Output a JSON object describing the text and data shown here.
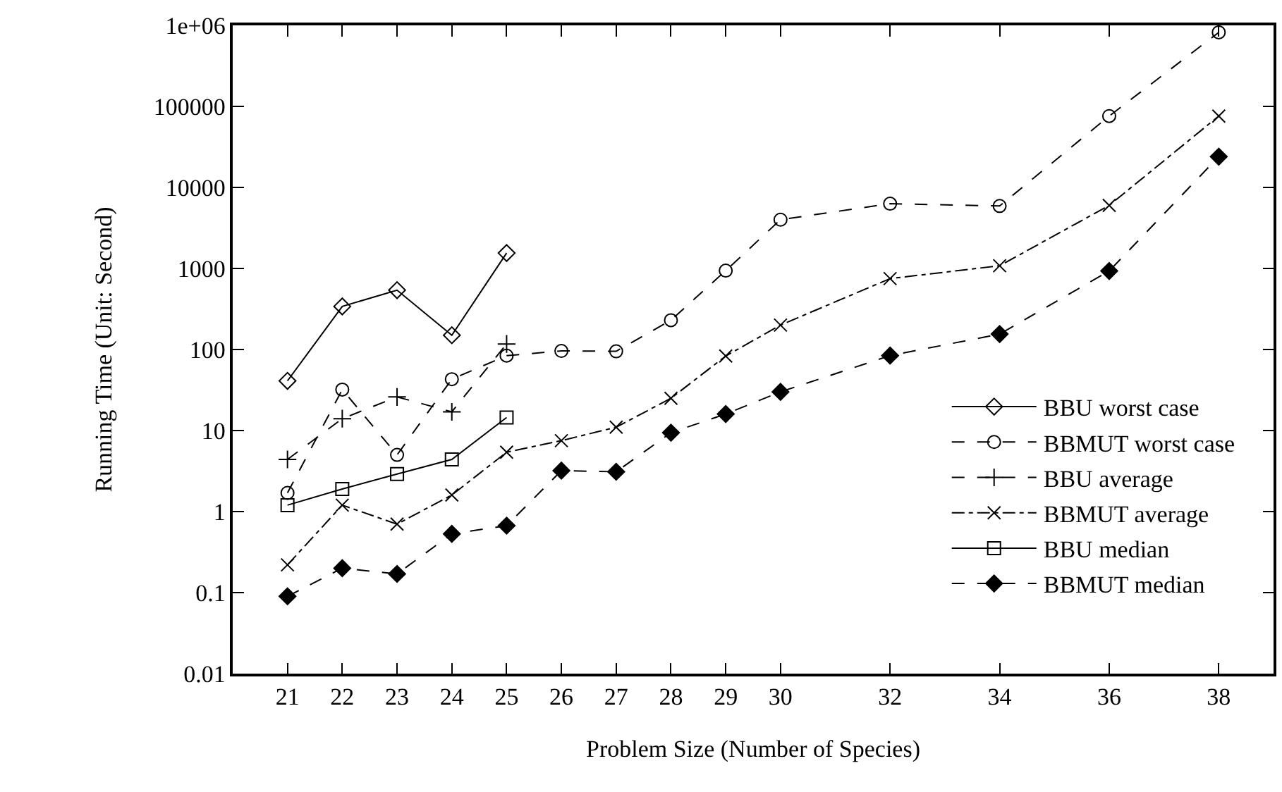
{
  "chart_data": {
    "type": "line",
    "xlabel": "Problem Size (Number of Species)",
    "ylabel": "Running Time (Unit: Second)",
    "log": "y",
    "legend": "bottom right",
    "xlim": [
      20,
      39
    ],
    "xticks": [
      21,
      22,
      23,
      24,
      25,
      26,
      27,
      28,
      29,
      30,
      32,
      34,
      36,
      38
    ],
    "ylim": [
      0.01,
      1000000
    ],
    "yticks": [
      0.01,
      0.1,
      1,
      10,
      100,
      1000,
      10000,
      100000,
      {
        "value": 1000000,
        "label": "1e+06"
      }
    ],
    "series": [
      {
        "name": "BBU worst case",
        "color": "#000000",
        "marker": "diamond-open",
        "line_style": "solid",
        "x": [
          21,
          22,
          23,
          24,
          25
        ],
        "values": [
          41,
          340,
          540,
          150,
          1550
        ]
      },
      {
        "name": "BBMUT worst case",
        "color": "#000000",
        "marker": "circle-open",
        "line_style": "dashed",
        "x": [
          21,
          22,
          23,
          24,
          25,
          26,
          27,
          28,
          29,
          30,
          32,
          34,
          36,
          38
        ],
        "values": [
          1.7,
          32,
          5,
          43,
          84,
          96,
          95,
          230,
          940,
          4000,
          6300,
          5900,
          76000,
          820000
        ]
      },
      {
        "name": "BBU average",
        "color": "#000000",
        "marker": "cross",
        "line_style": "dashed",
        "x": [
          21,
          22,
          23,
          24,
          25
        ],
        "values": [
          4.4,
          14,
          26,
          17,
          117
        ]
      },
      {
        "name": "BBMUT average",
        "color": "#000000",
        "marker": "x",
        "line_style": "dotted",
        "x": [
          21,
          22,
          23,
          24,
          25,
          26,
          27,
          28,
          29,
          30,
          32,
          34,
          36,
          38
        ],
        "values": [
          0.22,
          1.2,
          0.7,
          1.6,
          5.4,
          7.5,
          11,
          25,
          83,
          200,
          750,
          1080,
          6000,
          76000
        ]
      },
      {
        "name": "BBU median",
        "color": "#000000",
        "marker": "square-open",
        "line_style": "solid",
        "x": [
          21,
          22,
          23,
          24,
          25
        ],
        "values": [
          1.2,
          1.9,
          2.9,
          4.4,
          14.5
        ]
      },
      {
        "name": "BBMUT median",
        "color": "#000000",
        "marker": "diamond",
        "line_style": "dashed",
        "x": [
          21,
          22,
          23,
          24,
          25,
          26,
          27,
          28,
          29,
          30,
          32,
          34,
          36,
          38
        ],
        "values": [
          0.09,
          0.2,
          0.17,
          0.53,
          0.67,
          3.2,
          3.1,
          9.4,
          16,
          30,
          84,
          155,
          930,
          24000
        ]
      }
    ]
  }
}
